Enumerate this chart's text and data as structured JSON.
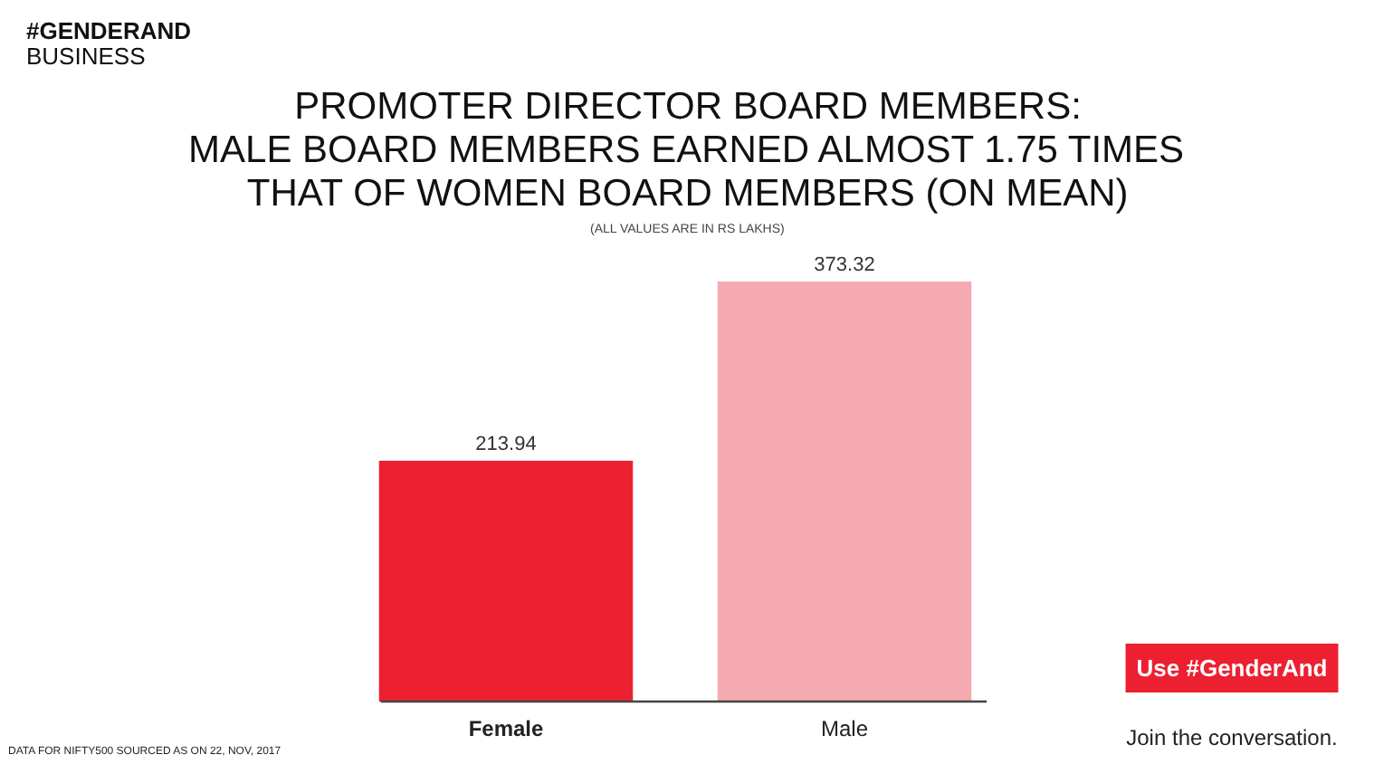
{
  "chart_data": {
    "type": "bar",
    "title": "PROMOTER DIRECTOR BOARD MEMBERS:\nMALE BOARD MEMBERS EARNED ALMOST 1.75 TIMES\nTHAT OF WOMEN BOARD MEMBERS (ON MEAN)",
    "subtitle": "(ALL VALUES ARE IN RS LAKHS)",
    "categories": [
      "Female",
      "Male"
    ],
    "values": [
      213.94,
      373.32
    ],
    "colors": [
      "#ec2031",
      "#f4aab0"
    ],
    "data_labels": true,
    "annotations": [
      "#GENDERAND",
      "BUSINESS",
      "Use #GenderAnd",
      "Join the conversation.",
      "DATA FOR NIFTY500 SOURCED AS ON 22, NOV, 2017"
    ]
  }
}
